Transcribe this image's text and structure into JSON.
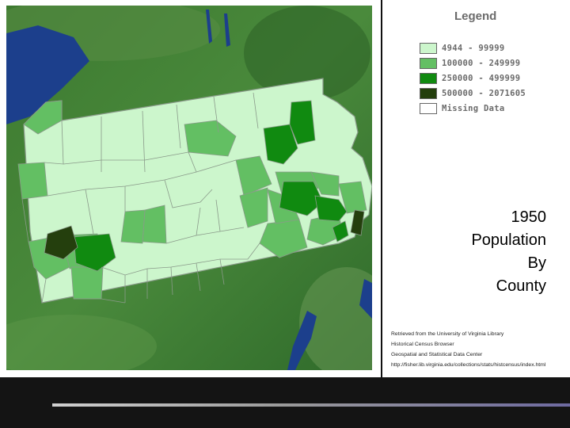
{
  "legend": {
    "title": "Legend",
    "items": [
      {
        "label": "4944 - 99999",
        "color": "#ccf6cc"
      },
      {
        "label": "100000 - 249999",
        "color": "#63bf63"
      },
      {
        "label": "250000 - 499999",
        "color": "#108a10"
      },
      {
        "label": "500000 - 2071605",
        "color": "#243f0d"
      },
      {
        "label": "Missing Data",
        "color": "#ffffff"
      }
    ]
  },
  "caption": {
    "line1": "1950",
    "line2": "Population",
    "line3": "By",
    "line4": "County"
  },
  "source": {
    "line1": "Retrieved from the University of Virginia Library",
    "line2": "Historical Census Browser",
    "line3": "Geospatial and Statistical Data Center",
    "line4": "http://fisher.lib.virginia.edu/collections/stats/histcensus/index.html"
  },
  "colors": {
    "terrain": "#3f7a33",
    "water": "#1c3f8c",
    "county_border": "#8a9a8a"
  }
}
